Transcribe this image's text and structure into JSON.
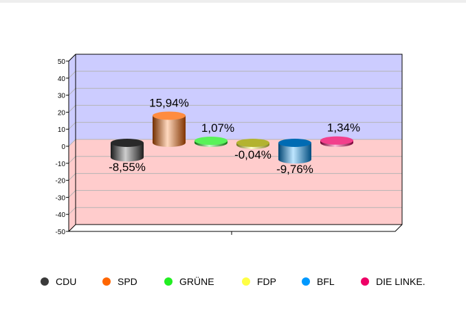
{
  "chart_data": {
    "type": "bar",
    "style": "3d-cylinder",
    "categories": [
      "CDU",
      "SPD",
      "GRÜNE",
      "FDP",
      "BFL",
      "DIE LINKE."
    ],
    "values": [
      -8.55,
      15.94,
      1.07,
      -0.04,
      -9.76,
      1.34
    ],
    "data_labels": [
      "-8,55%",
      "15,94%",
      "1,07%",
      "-0,04%",
      "-9,76%",
      "1,34%"
    ],
    "colors": [
      "#3a3a3a",
      "#ff6600",
      "#22ee22",
      "#ffff44",
      "#0099ff",
      "#ee0066"
    ],
    "ylim": [
      -50,
      50
    ],
    "yticks": [
      "50",
      "40",
      "30",
      "20",
      "10",
      "0",
      "-10",
      "-20",
      "-30",
      "-40",
      "-50"
    ],
    "ytick_values": [
      50,
      40,
      30,
      20,
      10,
      0,
      -10,
      -20,
      -30,
      -40,
      -50
    ],
    "positive_background": "#ccccff",
    "negative_background": "#ffcccc",
    "grid": true,
    "legend_placement": "bottom",
    "title": "",
    "xlabel": "",
    "ylabel": ""
  }
}
